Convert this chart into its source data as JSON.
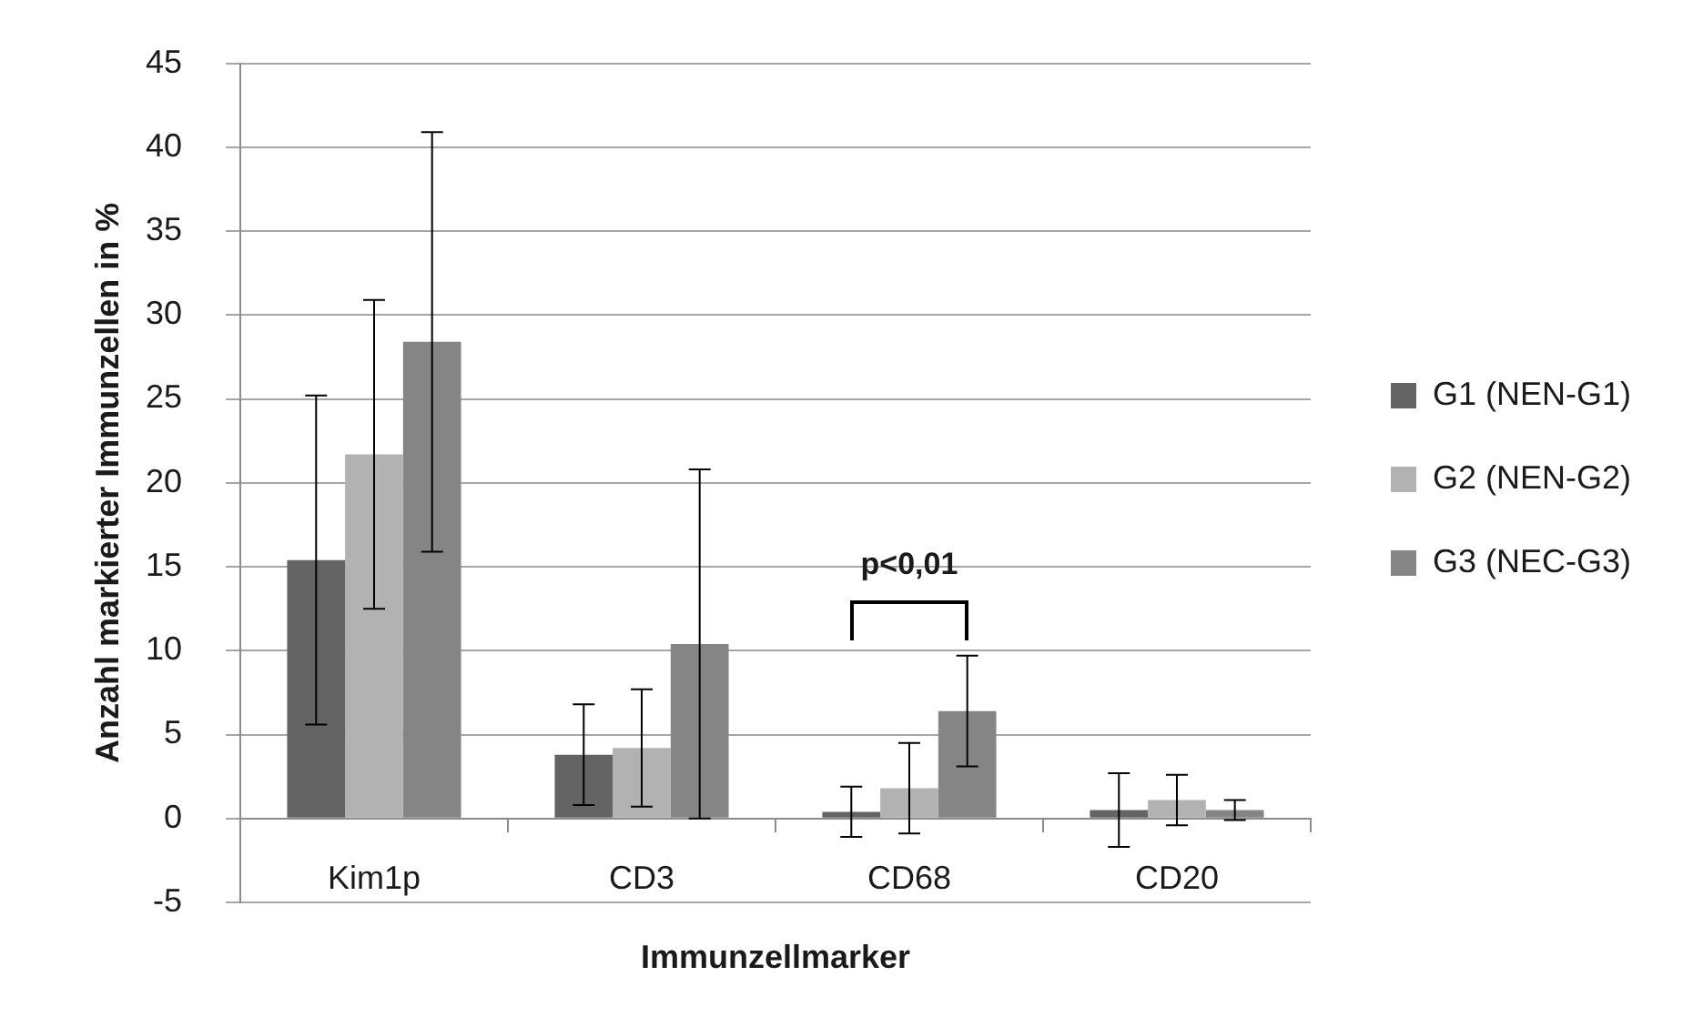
{
  "chart_data": {
    "type": "bar",
    "xlabel": "Immunzellmarker",
    "ylabel": "Anzahl markierter Immunzellen in %",
    "categories": [
      "Kim1p",
      "CD3",
      "CD68",
      "CD20"
    ],
    "series": [
      {
        "name": "G1 (NEN-G1)",
        "color": "#646464",
        "values": [
          15.4,
          3.8,
          0.4,
          0.5
        ],
        "errors": [
          9.8,
          3.0,
          1.5,
          2.2
        ]
      },
      {
        "name": "G2 (NEN-G2)",
        "color": "#b2b2b2",
        "values": [
          21.7,
          4.2,
          1.8,
          1.1
        ],
        "errors": [
          9.2,
          3.5,
          2.7,
          1.5
        ]
      },
      {
        "name": "G3 (NEC-G3)",
        "color": "#858585",
        "values": [
          28.4,
          10.4,
          6.4,
          0.5
        ],
        "errors": [
          12.5,
          10.4,
          3.3,
          0.6
        ]
      }
    ],
    "ylim": [
      -5,
      45
    ],
    "yticks": [
      -5,
      0,
      5,
      10,
      15,
      20,
      25,
      30,
      35,
      40,
      45
    ],
    "grid": "y",
    "legend": "right",
    "annotations": [
      "p<0,01"
    ]
  }
}
